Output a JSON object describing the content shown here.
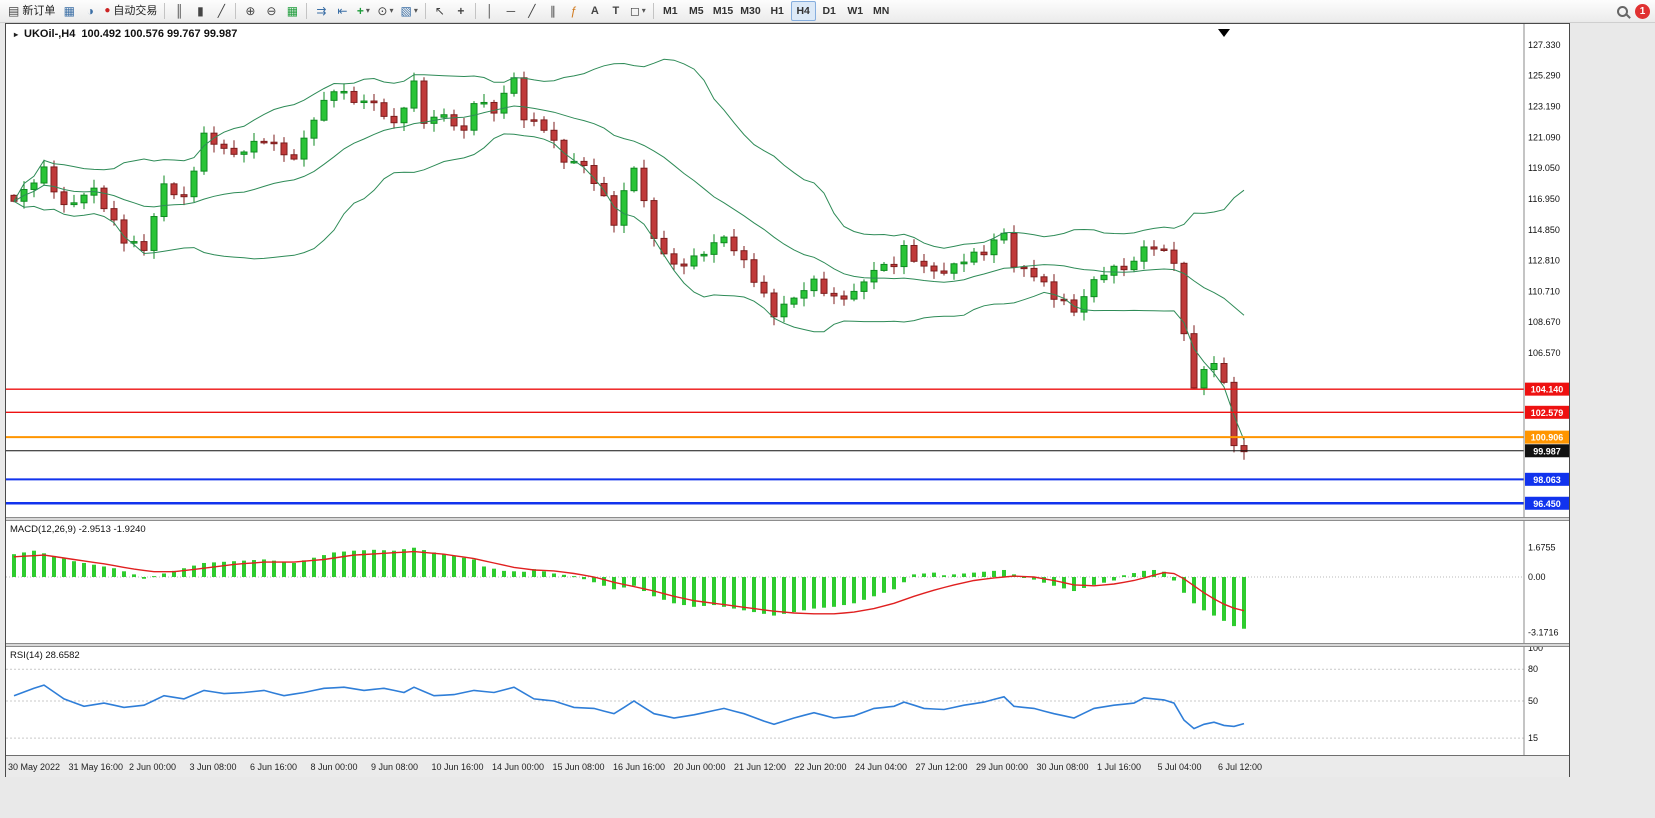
{
  "toolbar": {
    "new_order_label": "新订单",
    "autotrading_label": "自动交易",
    "timeframes": [
      "M1",
      "M5",
      "M15",
      "M30",
      "H1",
      "H4",
      "D1",
      "W1",
      "MN"
    ],
    "active_timeframe": "H4",
    "notification_count": "1",
    "icons": {
      "doc": "▤",
      "window": "▦",
      "quotes": "◑",
      "dot": "●",
      "bars": "║",
      "candles": "▮",
      "line": "╱",
      "zoom_in": "⊕",
      "zoom_out": "⊖",
      "tile": "▦",
      "autoscroll": "⇉",
      "shift": "⇤",
      "plus": "+",
      "clock": "⊙",
      "template": "▧",
      "cursor": "↖",
      "cross": "+",
      "vline": "│",
      "hline": "─",
      "tline": "╱",
      "channel": "∥",
      "fibo": "ƒ",
      "text": "A",
      "label": "T",
      "shapes": "◻",
      "dd": "▾"
    }
  },
  "chart_data": {
    "type": "candlestick",
    "symbol": "UKOil-,H4",
    "ohlc": "100.492 100.576 99.767 99.987",
    "ylim": [
      95.4,
      128.7
    ],
    "price_axis": [
      "127.330",
      "125.290",
      "123.190",
      "121.090",
      "119.050",
      "116.950",
      "114.850",
      "112.810",
      "110.710",
      "108.670",
      "106.570"
    ],
    "hlines": [
      {
        "price": 104.14,
        "label": "104.140",
        "color": "#ee1111",
        "width": 1.4
      },
      {
        "price": 102.579,
        "label": "102.579",
        "color": "#ee1111",
        "width": 1.4
      },
      {
        "price": 100.906,
        "label": "100.906",
        "color": "#ff9500",
        "width": 2
      },
      {
        "price": 99.987,
        "label": "99.987",
        "color": "#111111",
        "width": 1
      },
      {
        "price": 98.063,
        "label": "98.063",
        "color": "#1133ee",
        "width": 2
      },
      {
        "price": 96.45,
        "label": "96.450",
        "color": "#1133ee",
        "width": 2.6
      }
    ],
    "time_labels": [
      "30 May 2022",
      "31 May 16:00",
      "2 Jun 00:00",
      "3 Jun 08:00",
      "6 Jun 16:00",
      "8 Jun 00:00",
      "9 Jun 08:00",
      "10 Jun 16:00",
      "14 Jun 00:00",
      "15 Jun 08:00",
      "16 Jun 16:00",
      "20 Jun 00:00",
      "21 Jun 12:00",
      "22 Jun 20:00",
      "24 Jun 04:00",
      "27 Jun 12:00",
      "29 Jun 00:00",
      "30 Jun 08:00",
      "1 Jul 16:00",
      "5 Jul 04:00",
      "6 Jul 12:00"
    ],
    "price_anchors": [
      [
        0,
        116.8
      ],
      [
        3,
        118.9
      ],
      [
        5,
        116.4
      ],
      [
        8,
        117.6
      ],
      [
        11,
        114.2
      ],
      [
        13,
        113.6
      ],
      [
        15,
        117.9
      ],
      [
        17,
        116.9
      ],
      [
        19,
        121.2
      ],
      [
        22,
        119.9
      ],
      [
        25,
        121.0
      ],
      [
        28,
        119.6
      ],
      [
        30,
        122.4
      ],
      [
        32,
        124.4
      ],
      [
        34,
        123.6
      ],
      [
        36,
        123.4
      ],
      [
        38,
        121.9
      ],
      [
        40,
        124.7
      ],
      [
        41,
        122.2
      ],
      [
        43,
        122.6
      ],
      [
        45,
        121.4
      ],
      [
        46,
        123.6
      ],
      [
        48,
        122.9
      ],
      [
        50,
        125.1
      ],
      [
        51,
        122.4
      ],
      [
        53,
        121.8
      ],
      [
        55,
        119.6
      ],
      [
        57,
        119.2
      ],
      [
        59,
        117.0
      ],
      [
        60,
        115.4
      ],
      [
        62,
        119.2
      ],
      [
        64,
        114.3
      ],
      [
        66,
        112.4
      ],
      [
        68,
        112.9
      ],
      [
        70,
        113.9
      ],
      [
        71,
        114.4
      ],
      [
        73,
        112.7
      ],
      [
        75,
        110.4
      ],
      [
        76,
        109.2
      ],
      [
        78,
        110.3
      ],
      [
        80,
        111.4
      ],
      [
        82,
        110.2
      ],
      [
        84,
        110.6
      ],
      [
        86,
        112.2
      ],
      [
        88,
        112.6
      ],
      [
        89,
        113.6
      ],
      [
        91,
        112.3
      ],
      [
        93,
        112.0
      ],
      [
        95,
        112.9
      ],
      [
        97,
        113.4
      ],
      [
        99,
        114.7
      ],
      [
        100,
        112.4
      ],
      [
        102,
        111.9
      ],
      [
        104,
        110.4
      ],
      [
        105,
        110.0
      ],
      [
        106,
        109.4
      ],
      [
        108,
        111.4
      ],
      [
        109,
        112.0
      ],
      [
        111,
        112.4
      ],
      [
        112,
        112.6
      ],
      [
        113,
        113.8
      ],
      [
        115,
        113.4
      ],
      [
        116,
        112.8
      ],
      [
        117,
        107.8
      ],
      [
        118,
        104.3
      ],
      [
        119,
        105.4
      ],
      [
        120,
        105.9
      ],
      [
        121,
        104.6
      ],
      [
        122,
        100.3
      ],
      [
        123,
        99.99
      ]
    ],
    "colors": {
      "up": "#0e8a20",
      "up_fill": "#29c437",
      "down": "#7c1d1d",
      "down_fill": "#c03a3a",
      "band": "#2e8b57"
    },
    "macd": {
      "label": "MACD(12,26,9) -2.9513 -1.9240",
      "axis": [
        "1.6755",
        "0.00",
        "-3.1716"
      ],
      "axis_values": [
        1.6755,
        0,
        -3.1716
      ],
      "hist_color": "#2ecc2e",
      "signal_color": "#e02020",
      "hist_anchors": [
        [
          0,
          1.3
        ],
        [
          2,
          1.5
        ],
        [
          4,
          1.2
        ],
        [
          6,
          0.9
        ],
        [
          8,
          0.7
        ],
        [
          10,
          0.5
        ],
        [
          12,
          0.15
        ],
        [
          13,
          -0.1
        ],
        [
          15,
          0.2
        ],
        [
          17,
          0.5
        ],
        [
          19,
          0.8
        ],
        [
          22,
          0.9
        ],
        [
          25,
          1.0
        ],
        [
          28,
          0.8
        ],
        [
          30,
          1.1
        ],
        [
          32,
          1.4
        ],
        [
          34,
          1.5
        ],
        [
          36,
          1.55
        ],
        [
          38,
          1.5
        ],
        [
          40,
          1.67
        ],
        [
          42,
          1.4
        ],
        [
          44,
          1.2
        ],
        [
          46,
          1.0
        ],
        [
          47,
          0.6
        ],
        [
          49,
          0.35
        ],
        [
          51,
          0.3
        ],
        [
          52,
          0.45
        ],
        [
          54,
          0.2
        ],
        [
          56,
          0.05
        ],
        [
          58,
          -0.3
        ],
        [
          60,
          -0.7
        ],
        [
          62,
          -0.5
        ],
        [
          64,
          -1.1
        ],
        [
          66,
          -1.5
        ],
        [
          68,
          -1.7
        ],
        [
          70,
          -1.6
        ],
        [
          72,
          -1.8
        ],
        [
          74,
          -2.0
        ],
        [
          76,
          -2.2
        ],
        [
          78,
          -2.0
        ],
        [
          80,
          -1.8
        ],
        [
          82,
          -1.7
        ],
        [
          84,
          -1.5
        ],
        [
          86,
          -1.1
        ],
        [
          88,
          -0.7
        ],
        [
          89,
          -0.3
        ],
        [
          90,
          0.15
        ],
        [
          92,
          0.25
        ],
        [
          93,
          0.1
        ],
        [
          95,
          0.2
        ],
        [
          97,
          0.3
        ],
        [
          99,
          0.4
        ],
        [
          100,
          0.15
        ],
        [
          102,
          -0.15
        ],
        [
          104,
          -0.5
        ],
        [
          106,
          -0.8
        ],
        [
          108,
          -0.45
        ],
        [
          110,
          -0.2
        ],
        [
          111,
          0.1
        ],
        [
          113,
          0.35
        ],
        [
          114,
          0.4
        ],
        [
          115,
          0.3
        ],
        [
          116,
          -0.2
        ],
        [
          117,
          -0.9
        ],
        [
          118,
          -1.5
        ],
        [
          119,
          -1.9
        ],
        [
          120,
          -2.2
        ],
        [
          121,
          -2.5
        ],
        [
          122,
          -2.8
        ],
        [
          123,
          -2.95
        ]
      ],
      "signal_anchors": [
        [
          0,
          1.15
        ],
        [
          3,
          1.25
        ],
        [
          6,
          1.0
        ],
        [
          9,
          0.75
        ],
        [
          12,
          0.45
        ],
        [
          14,
          0.3
        ],
        [
          16,
          0.3
        ],
        [
          19,
          0.5
        ],
        [
          22,
          0.72
        ],
        [
          25,
          0.85
        ],
        [
          28,
          0.85
        ],
        [
          31,
          1.0
        ],
        [
          34,
          1.25
        ],
        [
          37,
          1.35
        ],
        [
          40,
          1.45
        ],
        [
          43,
          1.3
        ],
        [
          46,
          1.05
        ],
        [
          48,
          0.8
        ],
        [
          50,
          0.55
        ],
        [
          52,
          0.4
        ],
        [
          54,
          0.35
        ],
        [
          56,
          0.2
        ],
        [
          58,
          0.0
        ],
        [
          60,
          -0.3
        ],
        [
          62,
          -0.55
        ],
        [
          64,
          -0.8
        ],
        [
          66,
          -1.1
        ],
        [
          68,
          -1.35
        ],
        [
          70,
          -1.5
        ],
        [
          72,
          -1.65
        ],
        [
          74,
          -1.8
        ],
        [
          76,
          -1.95
        ],
        [
          78,
          -2.05
        ],
        [
          80,
          -2.1
        ],
        [
          82,
          -2.1
        ],
        [
          84,
          -2.0
        ],
        [
          86,
          -1.8
        ],
        [
          88,
          -1.5
        ],
        [
          90,
          -1.1
        ],
        [
          92,
          -0.75
        ],
        [
          94,
          -0.45
        ],
        [
          96,
          -0.2
        ],
        [
          98,
          -0.05
        ],
        [
          100,
          0.05
        ],
        [
          102,
          0.0
        ],
        [
          104,
          -0.2
        ],
        [
          106,
          -0.45
        ],
        [
          108,
          -0.5
        ],
        [
          110,
          -0.4
        ],
        [
          112,
          -0.2
        ],
        [
          114,
          0.1
        ],
        [
          115,
          0.25
        ],
        [
          116,
          0.2
        ],
        [
          117,
          -0.1
        ],
        [
          118,
          -0.5
        ],
        [
          119,
          -0.9
        ],
        [
          120,
          -1.25
        ],
        [
          121,
          -1.55
        ],
        [
          122,
          -1.78
        ],
        [
          123,
          -1.92
        ]
      ]
    },
    "rsi": {
      "label": "RSI(14) 28.6582",
      "axis": [
        "100",
        "80",
        "50",
        "15"
      ],
      "axis_values": [
        100,
        80,
        50,
        15
      ],
      "levels": [
        80,
        50,
        15
      ],
      "line_color": "#2f7ed8",
      "line_anchors": [
        [
          0,
          55
        ],
        [
          2,
          62
        ],
        [
          3,
          65
        ],
        [
          5,
          52
        ],
        [
          7,
          45
        ],
        [
          9,
          48
        ],
        [
          11,
          44
        ],
        [
          13,
          46
        ],
        [
          15,
          55
        ],
        [
          17,
          52
        ],
        [
          19,
          60
        ],
        [
          21,
          57
        ],
        [
          23,
          58
        ],
        [
          25,
          60
        ],
        [
          27,
          55
        ],
        [
          29,
          58
        ],
        [
          31,
          62
        ],
        [
          33,
          63
        ],
        [
          35,
          60
        ],
        [
          37,
          62
        ],
        [
          39,
          58
        ],
        [
          40,
          63
        ],
        [
          42,
          55
        ],
        [
          44,
          56
        ],
        [
          46,
          60
        ],
        [
          48,
          58
        ],
        [
          50,
          63
        ],
        [
          52,
          52
        ],
        [
          54,
          50
        ],
        [
          56,
          44
        ],
        [
          58,
          43
        ],
        [
          60,
          38
        ],
        [
          62,
          50
        ],
        [
          64,
          38
        ],
        [
          66,
          34
        ],
        [
          68,
          37
        ],
        [
          70,
          41
        ],
        [
          71,
          43
        ],
        [
          73,
          38
        ],
        [
          75,
          31
        ],
        [
          76,
          28
        ],
        [
          78,
          34
        ],
        [
          80,
          39
        ],
        [
          82,
          34
        ],
        [
          84,
          36
        ],
        [
          86,
          43
        ],
        [
          88,
          45
        ],
        [
          89,
          49
        ],
        [
          91,
          43
        ],
        [
          93,
          42
        ],
        [
          95,
          46
        ],
        [
          97,
          49
        ],
        [
          99,
          54
        ],
        [
          100,
          45
        ],
        [
          102,
          43
        ],
        [
          104,
          38
        ],
        [
          106,
          34
        ],
        [
          108,
          43
        ],
        [
          110,
          46
        ],
        [
          112,
          48
        ],
        [
          113,
          53
        ],
        [
          115,
          51
        ],
        [
          116,
          48
        ],
        [
          117,
          32
        ],
        [
          118,
          24
        ],
        [
          119,
          28
        ],
        [
          120,
          30
        ],
        [
          121,
          27
        ],
        [
          122,
          26
        ],
        [
          123,
          28.7
        ]
      ]
    }
  }
}
